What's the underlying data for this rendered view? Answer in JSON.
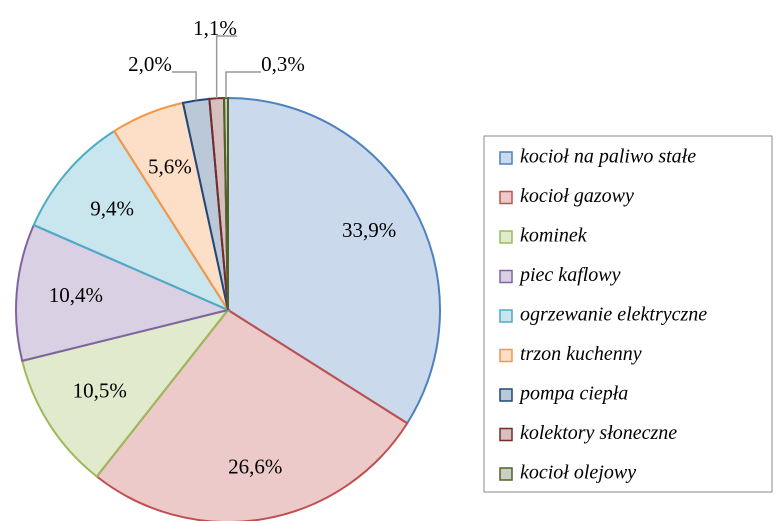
{
  "chart_data": {
    "type": "pie",
    "categories": [
      "kocioł na paliwo stałe",
      "kocioł gazowy",
      "kominek",
      "piec kaflowy",
      "ogrzewanie elektryczne",
      "trzon kuchenny",
      "pompa ciepła",
      "kolektory słoneczne",
      "kocioł olejowy"
    ],
    "values": [
      33.9,
      26.6,
      10.5,
      10.4,
      9.4,
      5.6,
      2.0,
      1.1,
      0.3
    ],
    "value_labels": [
      "33,9%",
      "26,6%",
      "10,5%",
      "10,4%",
      "9,4%",
      "5,6%",
      "2,0%",
      "1,1%",
      "0,3%"
    ],
    "colors": [
      "#4f81bd",
      "#c0504d",
      "#9bbb59",
      "#8064a2",
      "#4bacc6",
      "#f79646",
      "#1f497d",
      "#772c2a",
      "#4f6228"
    ],
    "legend": "right"
  }
}
